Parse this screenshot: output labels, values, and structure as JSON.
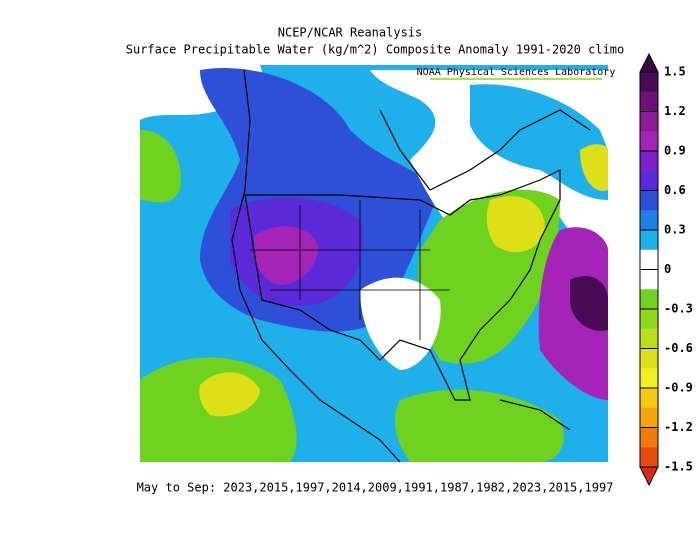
{
  "title": "NCEP/NCAR Reanalysis",
  "subtitle": "Surface Precipitable Water (kg/m^2) Composite Anomaly 1991-2020 climo",
  "credit": "NOAA Physical Sciences Laboratory",
  "caption": "May to Sep: 2023,2015,1997,2014,2009,1991,1987,1982,2023,2015,1997",
  "colorbar": {
    "ticks": [
      1.5,
      1.2,
      0.9,
      0.6,
      0.3,
      0,
      -0.3,
      -0.6,
      -0.9,
      -1.2,
      -1.5
    ],
    "colors": [
      "#4b0a55",
      "#6e1078",
      "#8e1b9a",
      "#a424b8",
      "#7a22c8",
      "#5a2ad8",
      "#2e4fd8",
      "#1e7fe6",
      "#1fb0ec",
      "#ffffff",
      "#ffffff",
      "#6fd21f",
      "#8fd81a",
      "#b8e01c",
      "#dde018",
      "#f2f020",
      "#f6c90f",
      "#f5a50c",
      "#f27a0a",
      "#e84c0c"
    ],
    "over_color": "#3b0644",
    "under_color": "#d92b0f"
  }
}
